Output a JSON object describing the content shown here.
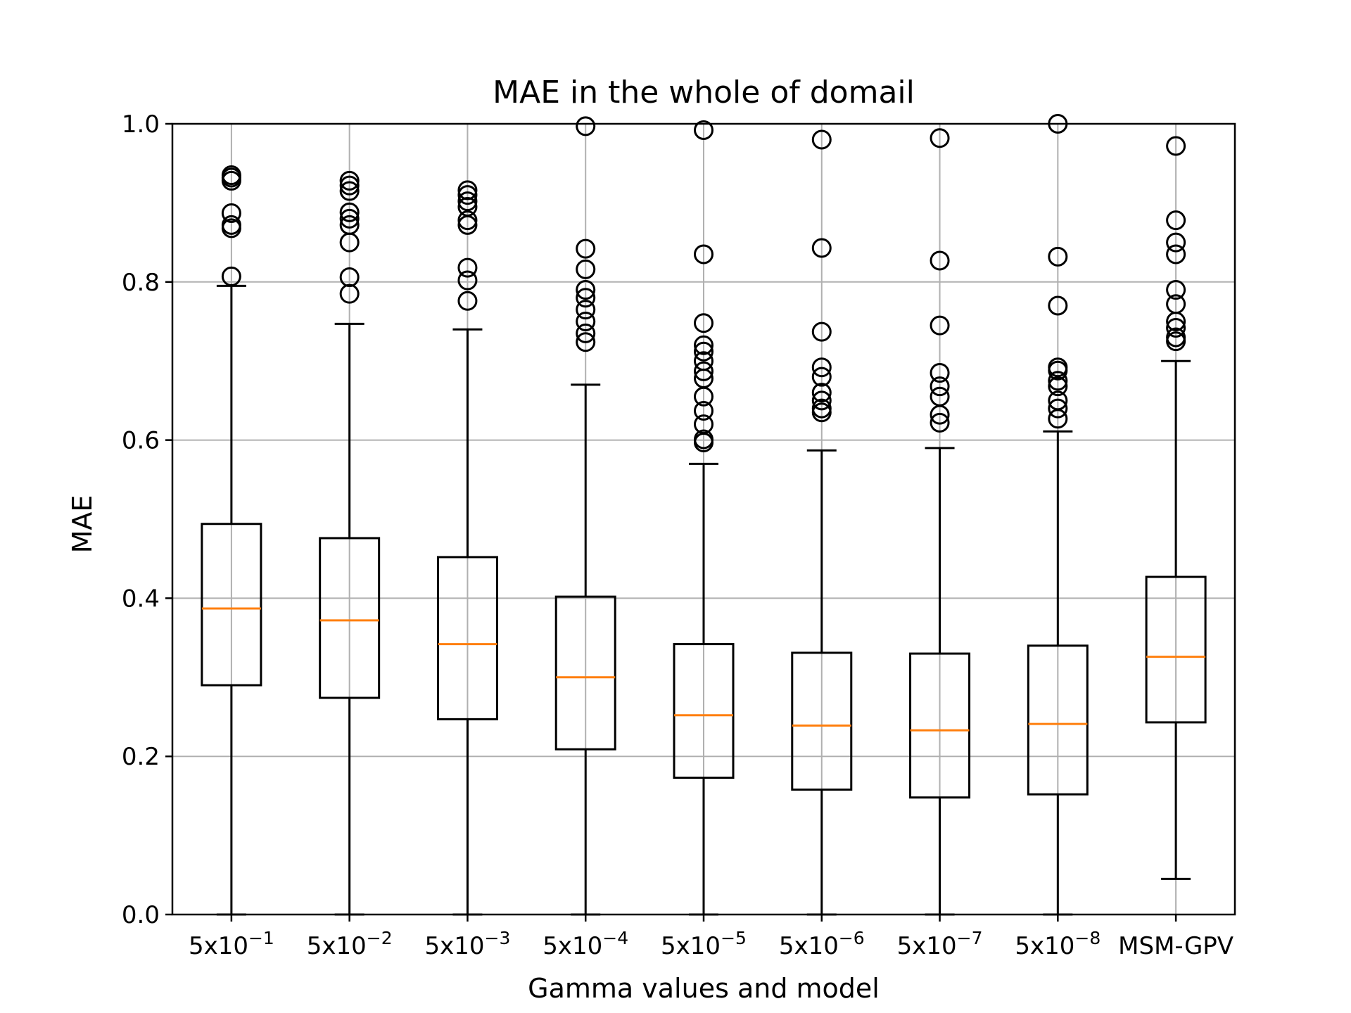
{
  "chart_data": {
    "type": "box",
    "title": "MAE in the whole of domail",
    "xlabel": "Gamma values and model",
    "ylabel": "MAE",
    "ylim": [
      0.0,
      1.0
    ],
    "yticks": [
      "0.0",
      "0.2",
      "0.4",
      "0.6",
      "0.8",
      "1.0"
    ],
    "grid": true,
    "categories": [
      {
        "base": "5x10",
        "exp": "−1"
      },
      {
        "base": "5x10",
        "exp": "−2"
      },
      {
        "base": "5x10",
        "exp": "−3"
      },
      {
        "base": "5x10",
        "exp": "−4"
      },
      {
        "base": "5x10",
        "exp": "−5"
      },
      {
        "base": "5x10",
        "exp": "−6"
      },
      {
        "base": "5x10",
        "exp": "−7"
      },
      {
        "base": "5x10",
        "exp": "−8"
      },
      {
        "base": "MSM-GPV",
        "exp": ""
      }
    ],
    "boxes": [
      {
        "whislo": 0.0,
        "q1": 0.29,
        "med": 0.387,
        "q3": 0.494,
        "whishi": 0.795,
        "fliers": [
          0.807,
          0.868,
          0.872,
          0.887,
          0.928,
          0.932,
          0.935
        ]
      },
      {
        "whislo": 0.0,
        "q1": 0.274,
        "med": 0.372,
        "q3": 0.476,
        "whishi": 0.747,
        "fliers": [
          0.785,
          0.806,
          0.85,
          0.872,
          0.88,
          0.888,
          0.915,
          0.922,
          0.928
        ]
      },
      {
        "whislo": 0.0,
        "q1": 0.247,
        "med": 0.342,
        "q3": 0.452,
        "whishi": 0.74,
        "fliers": [
          0.776,
          0.802,
          0.818,
          0.872,
          0.878,
          0.895,
          0.902,
          0.91,
          0.916
        ]
      },
      {
        "whislo": 0.0,
        "q1": 0.209,
        "med": 0.3,
        "q3": 0.402,
        "whishi": 0.67,
        "fliers": [
          0.724,
          0.735,
          0.75,
          0.765,
          0.78,
          0.79,
          0.816,
          0.842,
          0.997
        ]
      },
      {
        "whislo": 0.0,
        "q1": 0.173,
        "med": 0.252,
        "q3": 0.342,
        "whishi": 0.57,
        "fliers": [
          0.597,
          0.601,
          0.62,
          0.637,
          0.655,
          0.678,
          0.687,
          0.7,
          0.712,
          0.72,
          0.748,
          0.835,
          0.992
        ]
      },
      {
        "whislo": 0.0,
        "q1": 0.158,
        "med": 0.239,
        "q3": 0.331,
        "whishi": 0.587,
        "fliers": [
          0.635,
          0.64,
          0.65,
          0.66,
          0.68,
          0.692,
          0.737,
          0.843,
          0.98
        ]
      },
      {
        "whislo": 0.0,
        "q1": 0.148,
        "med": 0.233,
        "q3": 0.33,
        "whishi": 0.59,
        "fliers": [
          0.622,
          0.632,
          0.655,
          0.668,
          0.685,
          0.745,
          0.827,
          0.982
        ]
      },
      {
        "whislo": 0.0,
        "q1": 0.152,
        "med": 0.241,
        "q3": 0.34,
        "whishi": 0.611,
        "fliers": [
          0.627,
          0.64,
          0.65,
          0.668,
          0.675,
          0.688,
          0.692,
          0.77,
          0.832,
          1.0
        ]
      },
      {
        "whislo": 0.045,
        "q1": 0.243,
        "med": 0.326,
        "q3": 0.427,
        "whishi": 0.7,
        "fliers": [
          0.725,
          0.73,
          0.742,
          0.75,
          0.772,
          0.79,
          0.835,
          0.85,
          0.878,
          0.972
        ]
      }
    ]
  }
}
